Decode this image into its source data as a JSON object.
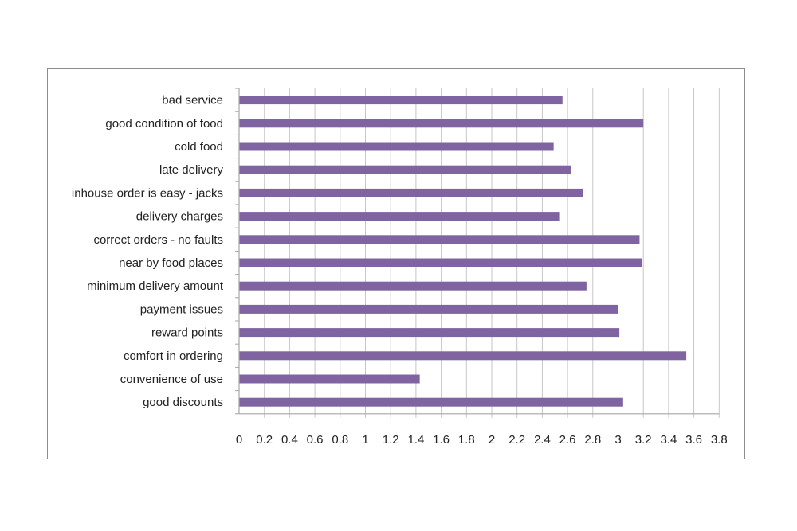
{
  "chart_data": {
    "type": "bar",
    "orientation": "horizontal",
    "categories": [
      "bad service",
      "good condition of food",
      "cold food",
      "late delivery",
      "inhouse order is easy - jacks",
      "delivery charges",
      "correct orders - no faults",
      "near by food places",
      "minimum delivery amount",
      "payment issues",
      "reward points",
      "comfort in ordering",
      "convenience of use",
      "good discounts"
    ],
    "values": [
      2.56,
      3.2,
      2.49,
      2.63,
      2.72,
      2.54,
      3.17,
      3.19,
      2.75,
      3.0,
      3.01,
      3.54,
      1.43,
      3.04
    ],
    "xlim": [
      0,
      3.8
    ],
    "xticks": [
      "0",
      "0.2",
      "0.4",
      "0.6",
      "0.8",
      "1",
      "1.2",
      "1.4",
      "1.6",
      "1.8",
      "2",
      "2.2",
      "2.4",
      "2.6",
      "2.8",
      "3",
      "3.2",
      "3.4",
      "3.6",
      "3.8"
    ],
    "title": "",
    "xlabel": "",
    "ylabel": "",
    "grid": "vertical",
    "legend": "none",
    "colors": {
      "bar": "#8064a2",
      "grid": "#c6c6c6",
      "axis": "#a6a6a6",
      "text": "#222222",
      "frame": "#8c8c8c"
    }
  }
}
